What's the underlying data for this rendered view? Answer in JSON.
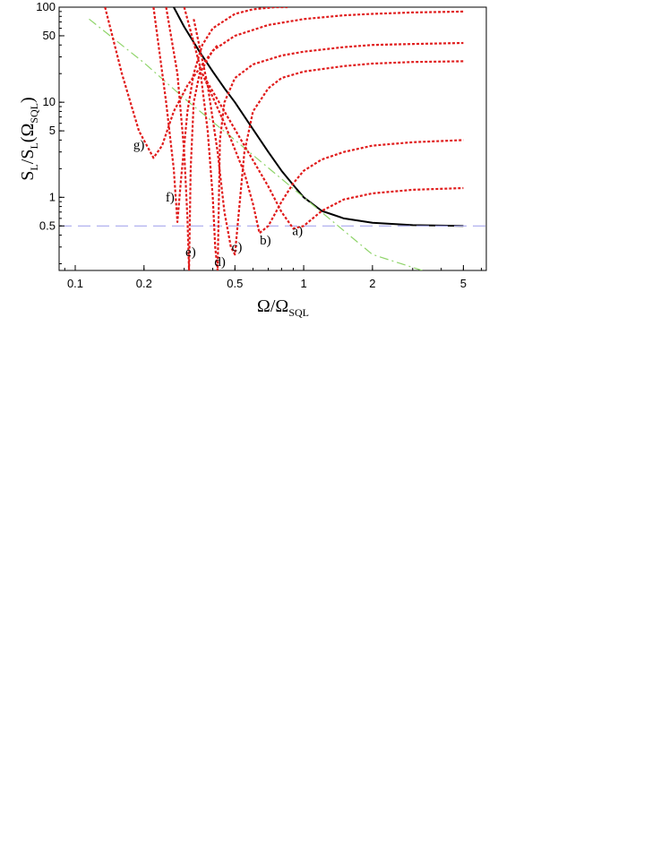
{
  "chart_data": {
    "type": "line",
    "xscale": "log",
    "yscale": "log",
    "xlim": [
      0.085,
      6.3
    ],
    "ylim": [
      0.17,
      100
    ],
    "grid": false,
    "xticks": [
      0.1,
      0.2,
      0.5,
      1,
      2,
      5
    ],
    "xtick_labels": [
      "0.1",
      "0.2",
      "0.5",
      "1",
      "2",
      "5"
    ],
    "yticks": [
      0.5,
      1,
      5,
      10,
      50,
      100
    ],
    "ytick_labels": [
      "0.5",
      "1",
      "5",
      "10",
      "50",
      "100"
    ],
    "xlabel": {
      "main": "Ω/Ω",
      "sub": "SQL"
    },
    "ylabel": {
      "p1": "S",
      "s1": "L",
      "p2": "/S",
      "s2": "L",
      "p3": "(Ω",
      "s3": "SQL",
      "p4": ")"
    },
    "colors": {
      "sql": "#000000",
      "detuned": "#e01b1b",
      "free_mass": "#8fd46a",
      "limit": "#a7a7ee"
    },
    "series": [
      {
        "style": "solid",
        "color": "#000000",
        "x": [
          0.27,
          0.3,
          0.35,
          0.4,
          0.45,
          0.5,
          0.6,
          0.7,
          0.8,
          0.9,
          1.0,
          1.2,
          1.5,
          2.0,
          3.0,
          5.0
        ],
        "y": [
          100,
          62,
          34,
          21,
          14,
          10,
          5.2,
          3.0,
          1.9,
          1.35,
          1.0,
          0.72,
          0.6,
          0.54,
          0.51,
          0.5
        ]
      },
      {
        "style": "dashdot",
        "color": "#8fd46a",
        "x": [
          0.115,
          0.2,
          0.3,
          0.5,
          1.0,
          2.0,
          3.3
        ],
        "y": [
          75,
          26,
          11,
          4.0,
          1.0,
          0.25,
          0.17
        ]
      },
      {
        "style": "dashed",
        "color": "#a7a7ee",
        "x": [
          0.085,
          6.3
        ],
        "y": [
          0.5,
          0.5
        ]
      },
      {
        "style": "dotted",
        "color": "#e01b1b",
        "x": [
          0.36,
          0.45,
          0.55,
          0.7,
          0.8,
          0.9,
          1.0,
          1.2,
          1.5,
          2.0,
          3.0,
          5.0
        ],
        "y": [
          20,
          8,
          3.5,
          1.3,
          0.7,
          0.47,
          0.5,
          0.72,
          0.95,
          1.1,
          1.2,
          1.25
        ]
      },
      {
        "style": "dotted",
        "color": "#e01b1b",
        "x": [
          0.36,
          0.45,
          0.55,
          0.6,
          0.64,
          0.7,
          0.8,
          0.9,
          1.0,
          1.2,
          1.5,
          2.0,
          3.0,
          5.0
        ],
        "y": [
          20,
          6,
          1.8,
          0.85,
          0.42,
          0.5,
          0.9,
          1.4,
          1.9,
          2.5,
          3.0,
          3.5,
          3.8,
          4.0
        ]
      },
      {
        "style": "dotted",
        "color": "#e01b1b",
        "x": [
          0.33,
          0.38,
          0.42,
          0.45,
          0.48,
          0.5,
          0.55,
          0.6,
          0.7,
          0.8,
          1.0,
          1.5,
          2.0,
          3.0,
          5.0
        ],
        "y": [
          75,
          15,
          3,
          0.7,
          0.3,
          0.25,
          3,
          8,
          14,
          18,
          21,
          24,
          25.5,
          26.5,
          27
        ]
      },
      {
        "style": "dotted",
        "color": "#e01b1b",
        "x": [
          0.3,
          0.35,
          0.38,
          0.4,
          0.41,
          0.42,
          0.43,
          0.45,
          0.5,
          0.6,
          0.8,
          1.0,
          1.5,
          2.0,
          3.0,
          5.0
        ],
        "y": [
          100,
          25,
          5,
          1,
          0.3,
          0.17,
          4,
          10,
          18,
          25,
          31,
          34,
          38,
          40,
          41,
          42
        ]
      },
      {
        "style": "dotted",
        "color": "#e01b1b",
        "x": [
          0.25,
          0.28,
          0.3,
          0.31,
          0.315,
          0.32,
          0.33,
          0.35,
          0.4,
          0.5,
          0.7,
          1.0,
          1.5,
          2.0,
          3.0,
          5.0
        ],
        "y": [
          100,
          20,
          3,
          0.6,
          0.17,
          2,
          10,
          20,
          35,
          50,
          65,
          75,
          82,
          85,
          88,
          90
        ]
      },
      {
        "style": "dotted",
        "color": "#e01b1b",
        "x": [
          0.22,
          0.25,
          0.27,
          0.28,
          0.29,
          0.31,
          0.33,
          0.36,
          0.4,
          0.5,
          0.6,
          0.75,
          0.85
        ],
        "y": [
          100,
          10,
          2,
          0.55,
          1.5,
          8,
          20,
          40,
          60,
          85,
          95,
          100,
          100
        ]
      },
      {
        "style": "dotted",
        "color": "#e01b1b",
        "x": [
          0.135,
          0.16,
          0.19,
          0.21,
          0.22,
          0.24,
          0.27,
          0.31,
          0.36,
          0.42
        ],
        "y": [
          100,
          20,
          5,
          3.2,
          2.6,
          3.5,
          8,
          15,
          25,
          40
        ]
      }
    ],
    "annotations": [
      {
        "text": "a)",
        "x": 0.94,
        "y": 0.4
      },
      {
        "text": "b)",
        "x": 0.68,
        "y": 0.32
      },
      {
        "text": "c)",
        "x": 0.51,
        "y": 0.27
      },
      {
        "text": "d)",
        "x": 0.43,
        "y": 0.19
      },
      {
        "text": "e)",
        "x": 0.32,
        "y": 0.24
      },
      {
        "text": "f)",
        "x": 0.26,
        "y": 0.9
      },
      {
        "text": "g)",
        "x": 0.19,
        "y": 3.2
      }
    ]
  }
}
